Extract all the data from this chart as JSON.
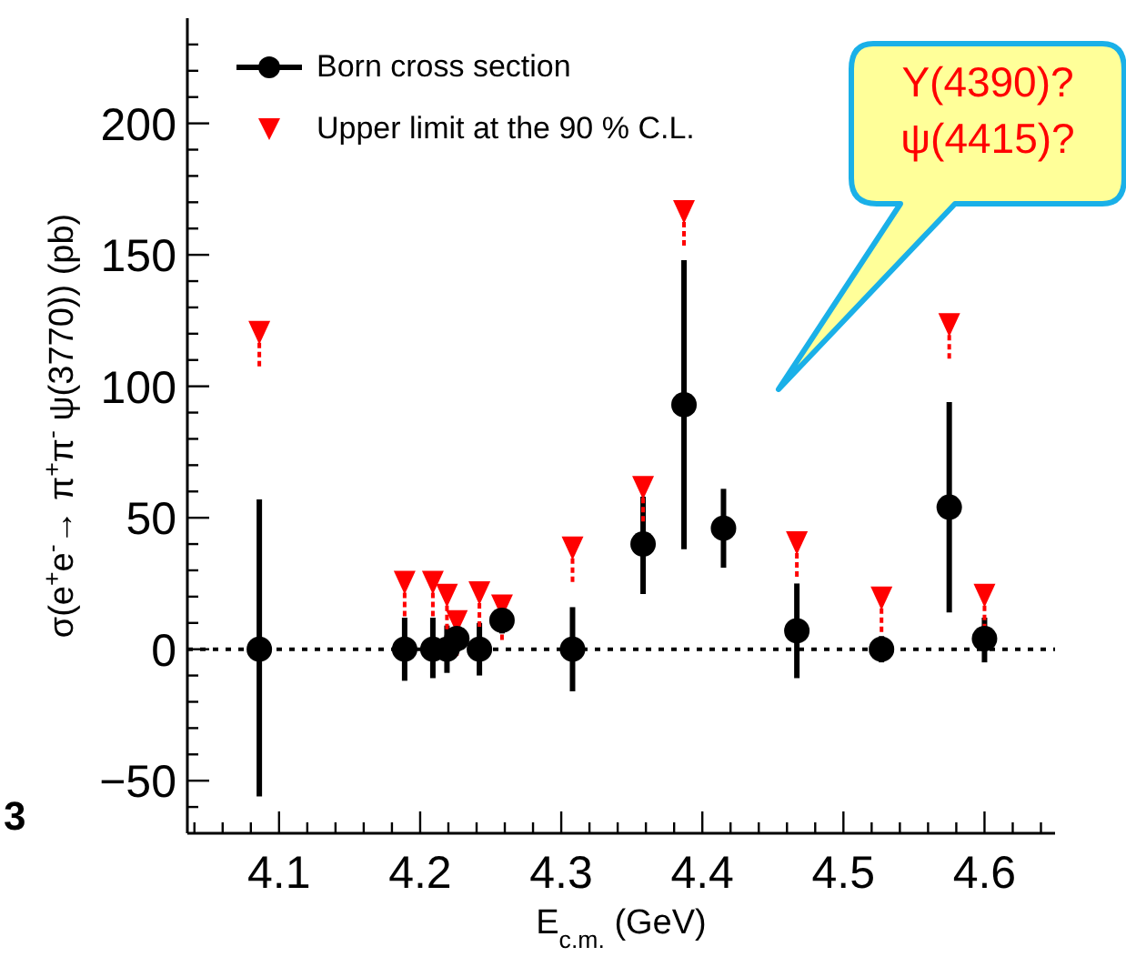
{
  "chart_data": {
    "type": "scatter",
    "xlabel": "E$_{c.m.}$ (GeV)",
    "ylabel": "σ(e$^{+}$e$^{-}$→ π$^{+}$π$^{-}$ ψ(3770)) (pb)",
    "annotations": [
      "Y(4390)?\nψ(4415)?",
      "3"
    ],
    "xlim": [
      4.035,
      4.65
    ],
    "xticks": [
      {
        "value": 4.04,
        "label": null
      },
      {
        "value": 4.06,
        "label": null
      },
      {
        "value": 4.08,
        "label": null
      },
      4.1,
      {
        "value": 4.12,
        "label": null
      },
      {
        "value": 4.14,
        "label": null
      },
      {
        "value": 4.16,
        "label": null
      },
      {
        "value": 4.18,
        "label": null
      },
      4.2,
      {
        "value": 4.22,
        "label": null
      },
      {
        "value": 4.24,
        "label": null
      },
      {
        "value": 4.26,
        "label": null
      },
      {
        "value": 4.28,
        "label": null
      },
      4.3,
      {
        "value": 4.32,
        "label": null
      },
      {
        "value": 4.34,
        "label": null
      },
      {
        "value": 4.36,
        "label": null
      },
      {
        "value": 4.38,
        "label": null
      },
      4.4,
      {
        "value": 4.42,
        "label": null
      },
      {
        "value": 4.44,
        "label": null
      },
      {
        "value": 4.46,
        "label": null
      },
      {
        "value": 4.48,
        "label": null
      },
      4.5,
      {
        "value": 4.52,
        "label": null
      },
      {
        "value": 4.54,
        "label": null
      },
      {
        "value": 4.56,
        "label": null
      },
      {
        "value": 4.58,
        "label": null
      },
      4.6,
      {
        "value": 4.62,
        "label": null
      },
      {
        "value": 4.64,
        "label": null
      }
    ],
    "ylim": [
      -70,
      240
    ],
    "yticks": [
      {
        "value": -60,
        "label": null
      },
      {
        "value": -50,
        "label": "−50"
      },
      {
        "value": -40,
        "label": null
      },
      {
        "value": -30,
        "label": null
      },
      {
        "value": -20,
        "label": null
      },
      {
        "value": -10,
        "label": null
      },
      0,
      {
        "value": 10,
        "label": null
      },
      {
        "value": 20,
        "label": null
      },
      {
        "value": 30,
        "label": null
      },
      {
        "value": 40,
        "label": null
      },
      50,
      {
        "value": 60,
        "label": null
      },
      {
        "value": 70,
        "label": null
      },
      {
        "value": 80,
        "label": null
      },
      {
        "value": 90,
        "label": null
      },
      100,
      {
        "value": 110,
        "label": null
      },
      {
        "value": 120,
        "label": null
      },
      {
        "value": 130,
        "label": null
      },
      {
        "value": 140,
        "label": null
      },
      150,
      {
        "value": 160,
        "label": null
      },
      {
        "value": 170,
        "label": null
      },
      {
        "value": 180,
        "label": null
      },
      {
        "value": 190,
        "label": null
      },
      200,
      {
        "value": 210,
        "label": null
      },
      {
        "value": 220,
        "label": null
      },
      {
        "value": 230,
        "label": null
      }
    ],
    "ref_lines": [
      {
        "axis": "y",
        "value": 0,
        "label": null,
        "color": "#000000",
        "line_style": "dotted"
      }
    ],
    "legend": "top left",
    "series": [
      {
        "name": "Born cross section",
        "color": "#000000",
        "marker": "circle",
        "x": [
          4.086,
          4.189,
          4.209,
          4.219,
          4.226,
          4.242,
          4.258,
          4.308,
          4.358,
          4.387,
          4.415,
          4.467,
          4.527,
          4.575,
          4.6
        ],
        "values": [
          0,
          0,
          0,
          0,
          4,
          0,
          11,
          0,
          40,
          93,
          46,
          7,
          0,
          54,
          4
        ],
        "errors": [
          [
            -56,
            57
          ],
          [
            -12,
            12
          ],
          [
            -11,
            12
          ],
          [
            -9,
            9
          ],
          [
            -1,
            9
          ],
          [
            -10,
            10
          ],
          [
            6,
            16
          ],
          [
            -16,
            16
          ],
          [
            21,
            58
          ],
          [
            38,
            148
          ],
          [
            31,
            61
          ],
          [
            -11,
            25
          ],
          [
            -5,
            5
          ],
          [
            14,
            94
          ],
          [
            -5,
            12
          ]
        ]
      },
      {
        "name": "Upper limit at the 90 % C.L.",
        "color": "#ff0000",
        "marker": "triangle",
        "x": [
          4.086,
          4.189,
          4.209,
          4.219,
          4.226,
          4.242,
          4.258,
          4.308,
          4.358,
          4.387,
          4.467,
          4.527,
          4.575,
          4.6
        ],
        "values": [
          120,
          25,
          25,
          20,
          10,
          21,
          16,
          38,
          61,
          166,
          40,
          19,
          123,
          20
        ]
      }
    ]
  }
}
